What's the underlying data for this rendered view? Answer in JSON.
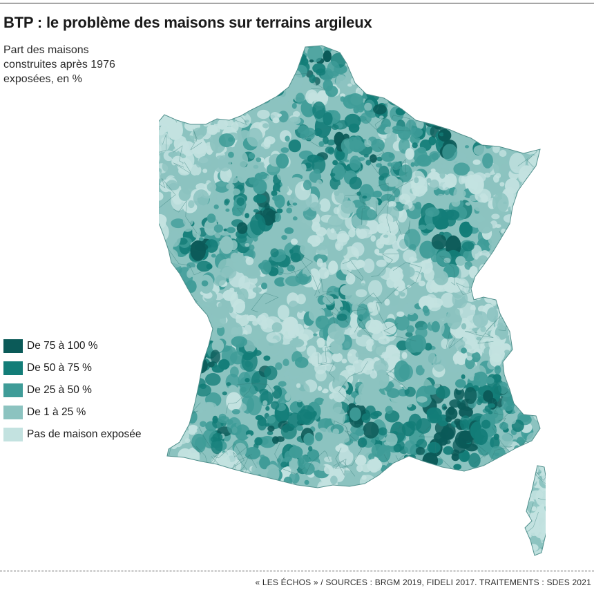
{
  "title": "BTP : le problème des maisons sur terrains argileux",
  "subtitle": "Part des maisons construites après 1976 exposées, en %",
  "legend": [
    {
      "label": "De 75 à 100 %",
      "color": "#0b5a58",
      "level": "75-100"
    },
    {
      "label": "De 50 à 75 %",
      "color": "#137d78",
      "level": "50-75"
    },
    {
      "label": "De 25 à 50 %",
      "color": "#3f9c98",
      "level": "25-50"
    },
    {
      "label": "De 1 à 25 %",
      "color": "#8cc3c0",
      "level": "1-25"
    },
    {
      "label": "Pas de maison exposée",
      "color": "#c3e2e0",
      "level": "0"
    }
  ],
  "source": "« LES ÉCHOS » / SOURCES : BRGM 2019, FIDELI 2017. TRAITEMENTS : SDES 2021"
}
